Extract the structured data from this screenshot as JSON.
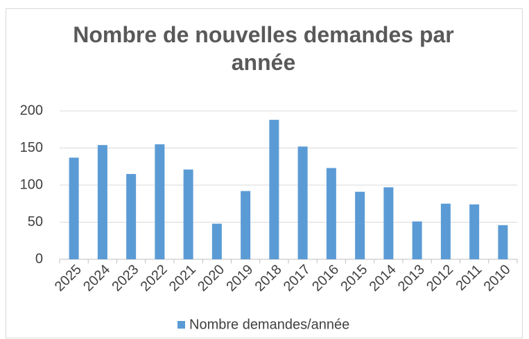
{
  "chart_data": {
    "type": "bar",
    "title": "Nombre de nouvelles demandes par année",
    "categories": [
      "2025",
      "2024",
      "2023",
      "2022",
      "2021",
      "2020",
      "2019",
      "2018",
      "2017",
      "2016",
      "2015",
      "2014",
      "2013",
      "2012",
      "2011",
      "2010"
    ],
    "series": [
      {
        "name": "Nombre demandes/année",
        "color": "#5b9bd5",
        "values": [
          137,
          154,
          115,
          155,
          121,
          48,
          92,
          188,
          152,
          123,
          91,
          97,
          51,
          75,
          74,
          46
        ]
      }
    ],
    "ylim": [
      0,
      200
    ],
    "yticks": [
      0,
      50,
      100,
      150,
      200
    ],
    "grid": true,
    "legend": "bottom"
  }
}
